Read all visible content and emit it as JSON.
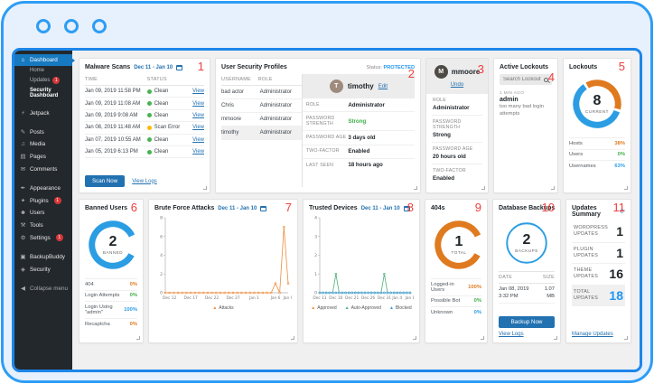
{
  "theme": {
    "frame_blue": "#2e9df4",
    "inner_blue": "#1d86ea",
    "accent": "#2271b1",
    "green": "#3fae49",
    "orange": "#ef8c3c",
    "donut_blue": "#2b9de3",
    "donut_orange": "#e07a1f",
    "red_annotation": "#f03e3e",
    "status_green": "#46b450",
    "status_orange": "#ffb900"
  },
  "sidebar": {
    "items": [
      {
        "label": "Dashboard"
      },
      {
        "label": "Home"
      },
      {
        "label": "Updates",
        "badge": "1"
      },
      {
        "label": "Security Dashboard"
      },
      {
        "label": "Jetpack"
      },
      {
        "label": "Posts"
      },
      {
        "label": "Media"
      },
      {
        "label": "Pages"
      },
      {
        "label": "Comments"
      },
      {
        "label": "Appearance"
      },
      {
        "label": "Plugins",
        "badge": "1"
      },
      {
        "label": "Users"
      },
      {
        "label": "Tools"
      },
      {
        "label": "Settings",
        "badge": "1"
      },
      {
        "label": "BackupBuddy"
      },
      {
        "label": "Security"
      },
      {
        "label": "Collapse menu"
      }
    ]
  },
  "cards": {
    "malware": {
      "annotation": "1",
      "title": "Malware Scans",
      "date_range": "Dec 11 - Jan 10",
      "col_time": "TIME",
      "col_status": "STATUS",
      "view_label": "View",
      "rows": [
        {
          "time": "Jan 09, 2019 11:58 PM",
          "status": "Clean",
          "dot": "#46b450"
        },
        {
          "time": "Jan 09, 2019 11:08 AM",
          "status": "Clean",
          "dot": "#46b450"
        },
        {
          "time": "Jan 09, 2019 9:08 AM",
          "status": "Clean",
          "dot": "#46b450"
        },
        {
          "time": "Jan 08, 2019 11:48 AM",
          "status": "Scan Error",
          "dot": "#ffb900"
        },
        {
          "time": "Jan 07, 2019 10:55 AM",
          "status": "Clean",
          "dot": "#46b450"
        },
        {
          "time": "Jan 05, 2019 6:13 PM",
          "status": "Clean",
          "dot": "#46b450"
        }
      ],
      "scan_button": "Scan Now",
      "logs_link": "View Logs"
    },
    "profiles": {
      "annotation": "2",
      "title": "User Security Profiles",
      "status_label": "Status:",
      "status_value": "PROTECTED",
      "col_username": "USERNAME",
      "col_role": "ROLE",
      "users": [
        {
          "name": "bad actor",
          "role": "Administrator"
        },
        {
          "name": "Chris",
          "role": "Administrator"
        },
        {
          "name": "mmoore",
          "role": "Administrator"
        },
        {
          "name": "timothy",
          "role": "Administrator"
        }
      ],
      "detail": {
        "avatar_initial": "T",
        "name": "timothy",
        "edit_link": "Edit",
        "role_label": "ROLE",
        "role_value": "Administrator",
        "pw_strength_label": "PASSWORD STRENGTH",
        "pw_strength_value": "Strong",
        "pw_age_label": "PASSWORD AGE",
        "pw_age_value": "3 days old",
        "two_factor_label": "TWO-FACTOR",
        "two_factor_value": "Enabled",
        "last_seen_label": "LAST SEEN",
        "last_seen_value": "18 hours ago"
      }
    },
    "mmoore": {
      "annotation": "3",
      "avatar_initial": "M",
      "name": "mmoore",
      "undo_link": "Undo",
      "role_label": "ROLE",
      "role_value": "Administrator",
      "pw_strength_label": "PASSWORD STRENGTH",
      "pw_strength_value": "Strong",
      "pw_age_label": "PASSWORD AGE",
      "pw_age_value": "20 hours old",
      "two_factor_label": "TWO-FACTOR",
      "two_factor_value": "Enabled"
    },
    "active_lockouts": {
      "annotation": "4",
      "title": "Active Lockouts",
      "search_placeholder": "Search Lockouts",
      "entry": {
        "ago": "1 MIN AGO",
        "name": "admin",
        "reason": "too many bad login attempts"
      }
    },
    "lockouts": {
      "annotation": "5",
      "title": "Lockouts",
      "stats": [
        {
          "label": "Hosts",
          "pct": "38%",
          "color": "#e07a1f"
        },
        {
          "label": "Users",
          "pct": "0%",
          "color": "#3fae49"
        },
        {
          "label": "Usernames",
          "pct": "63%",
          "color": "#2b9de3"
        }
      ]
    },
    "banned": {
      "annotation": "6",
      "title": "Banned Users",
      "stats": [
        {
          "label": "404",
          "pct": "0%",
          "color": "#e07a1f"
        },
        {
          "label": "Login Attempts",
          "pct": "0%",
          "color": "#3fae49"
        },
        {
          "label": "Login Using \"admin\"",
          "pct": "100%",
          "color": "#2b9de3"
        },
        {
          "label": "Recaptcha",
          "pct": "0%",
          "color": "#e07a1f"
        }
      ]
    },
    "brute_force": {
      "annotation": "7",
      "title": "Brute Force Attacks",
      "date_range": "Dec 11 - Jan 10"
    },
    "trusted": {
      "annotation": "8",
      "title": "Trusted Devices",
      "date_range": "Dec 11 - Jan 10"
    },
    "four04": {
      "annotation": "9",
      "title": "404s",
      "stats": [
        {
          "label": "Logged-in Users",
          "pct": "100%",
          "color": "#e07a1f"
        },
        {
          "label": "Possible Bot",
          "pct": "0%",
          "color": "#3fae49"
        },
        {
          "label": "Unknown",
          "pct": "0%",
          "color": "#2b9de3"
        }
      ]
    },
    "backups": {
      "annotation": "10",
      "title": "Database Backups",
      "col_date": "DATE",
      "col_size": "SIZE",
      "row": {
        "date": "Jan 08, 2019 3:32 PM",
        "size": "1.07 MB"
      },
      "backup_button": "Backup Now",
      "logs_link": "View Logs"
    },
    "updates": {
      "annotation": "11",
      "title": "Updates Summary",
      "rows": [
        {
          "label": "WORDPRESS UPDATES",
          "value": "1"
        },
        {
          "label": "PLUGIN UPDATES",
          "value": "1"
        },
        {
          "label": "THEME UPDATES",
          "value": "16"
        },
        {
          "label": "TOTAL UPDATES",
          "value": "18"
        }
      ],
      "manage_link": "Manage Updates"
    }
  },
  "chart_data": [
    {
      "id": "brute_force_attacks",
      "type": "line",
      "title": "Brute Force Attacks",
      "ylim": [
        0,
        8
      ],
      "yticks": [
        0,
        2,
        4,
        6,
        8
      ],
      "n": 30,
      "xticks": [
        {
          "i": 1,
          "label": "Dec 12"
        },
        {
          "i": 6,
          "label": "Dec 17"
        },
        {
          "i": 11,
          "label": "Dec 22"
        },
        {
          "i": 16,
          "label": "Dec 27"
        },
        {
          "i": 21,
          "label": "Jan 1"
        },
        {
          "i": 26,
          "label": "Jan 6"
        },
        {
          "i": 29,
          "label": "Jan 9"
        }
      ],
      "series": [
        {
          "name": "Attacks",
          "color": "#ef8c3c",
          "values": [
            0,
            0,
            0,
            0,
            0,
            0,
            0,
            0,
            0,
            0,
            0,
            0,
            0,
            0,
            0,
            0,
            0,
            0,
            0,
            0,
            0,
            0,
            0,
            0,
            0,
            0,
            1,
            0,
            7,
            1
          ]
        }
      ],
      "legend_position": "bottom",
      "grid": false
    },
    {
      "id": "trusted_devices",
      "type": "line",
      "title": "Trusted Devices",
      "ylim": [
        0,
        4
      ],
      "yticks": [
        0,
        1,
        2,
        3,
        4
      ],
      "n": 29,
      "xticks": [
        {
          "i": 0,
          "label": "Dec 11"
        },
        {
          "i": 5,
          "label": "Dec 16"
        },
        {
          "i": 10,
          "label": "Dec 21"
        },
        {
          "i": 15,
          "label": "Dec 26"
        },
        {
          "i": 20,
          "label": "Dec 31"
        },
        {
          "i": 24,
          "label": "Jan 4"
        },
        {
          "i": 28,
          "label": "Jan 8"
        }
      ],
      "series": [
        {
          "name": "Approved",
          "color": "#ef8c3c",
          "values": [
            0,
            0,
            0,
            0,
            0,
            0,
            0,
            0,
            0,
            0,
            0,
            0,
            0,
            0,
            0,
            0,
            0,
            0,
            0,
            0,
            0,
            0,
            0,
            0,
            0,
            0,
            0,
            0,
            0
          ]
        },
        {
          "name": "Auto-Approved",
          "color": "#4caf7d",
          "values": [
            0,
            0,
            0,
            0,
            0,
            1,
            0,
            0,
            0,
            0,
            0,
            0,
            0,
            0,
            0,
            0,
            0,
            0,
            0,
            0,
            1,
            0,
            0,
            0,
            0,
            0,
            0,
            0,
            0
          ]
        },
        {
          "name": "Blocked",
          "color": "#3a9bdc",
          "values": [
            0,
            0,
            0,
            0,
            0,
            0,
            0,
            0,
            0,
            0,
            0,
            0,
            0,
            0,
            0,
            0,
            0,
            0,
            0,
            0,
            0,
            0,
            0,
            0,
            0,
            0,
            0,
            0,
            0
          ]
        }
      ],
      "legend_position": "bottom",
      "grid": false
    },
    {
      "id": "banned_donut",
      "type": "donut",
      "center": "2",
      "label": "BANNED",
      "start": 28,
      "gap": 0,
      "segments": [
        {
          "color": "#2b9de3",
          "pct": 85
        }
      ]
    },
    {
      "id": "lockouts_donut",
      "type": "donut",
      "center": "8",
      "label": "CURRENT",
      "start": -118,
      "gap": 2,
      "segments": [
        {
          "name": "Hosts",
          "color": "#e07a1f",
          "pct": 36.5
        },
        {
          "name": "Usernames",
          "color": "#2b9de3",
          "pct": 59.5
        }
      ]
    },
    {
      "id": "404s_donut",
      "type": "donut",
      "center": "1",
      "label": "TOTAL",
      "start": 28,
      "gap": 0,
      "segments": [
        {
          "color": "#e07a1f",
          "pct": 85
        }
      ]
    },
    {
      "id": "backups_circle",
      "type": "donut",
      "center": "2",
      "label": "BACKUPS",
      "start": -90,
      "gap": 0,
      "segments": [
        {
          "color": "#2b9de3",
          "pct": 100
        }
      ]
    }
  ]
}
